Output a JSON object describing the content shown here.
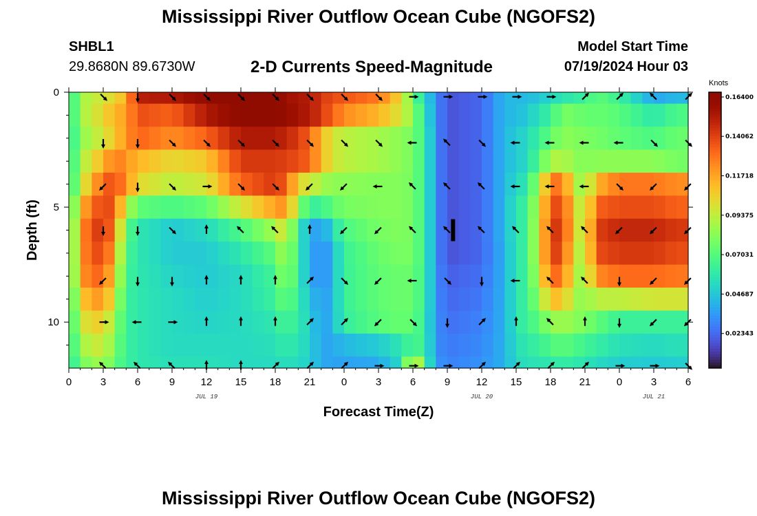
{
  "page": {
    "title": "Mississippi River Outflow Ocean Cube (NGOFS2)",
    "title_repeat": "Mississippi River Outflow Ocean Cube (NGOFS2)"
  },
  "station": {
    "id": "SHBL1",
    "coords": "29.8680N  89.6730W"
  },
  "model": {
    "start_label": "Model Start Time",
    "start_value": "07/19/2024 Hour 03"
  },
  "chart_data": {
    "type": "heatmap",
    "title": "2-D Currents Speed-Magnitude",
    "xlabel": "Forecast Time(Z)",
    "ylabel": "Depth (ft)",
    "x_tick_labels": [
      "0",
      "3",
      "6",
      "9",
      "12",
      "15",
      "18",
      "21",
      "0",
      "3",
      "6",
      "9",
      "12",
      "15",
      "18",
      "21",
      "0",
      "3",
      "6"
    ],
    "x_tick_hours": [
      0,
      3,
      6,
      9,
      12,
      15,
      18,
      21,
      24,
      27,
      30,
      33,
      36,
      39,
      42,
      45,
      48,
      51,
      54
    ],
    "date_labels": [
      {
        "text": "JUL 19",
        "hour": 12
      },
      {
        "text": "JUL 20",
        "hour": 36
      },
      {
        "text": "JUL 21",
        "hour": 51
      }
    ],
    "xlim_hours": [
      0,
      54
    ],
    "ylim_ft": [
      0,
      12
    ],
    "y_tick_labels": [
      "0",
      "5",
      "10"
    ],
    "y_tick_values": [
      0,
      5,
      10
    ],
    "colorbar": {
      "unit": "Knots",
      "min": 0.0,
      "max": 0.164,
      "tick_labels": [
        "0.16400",
        "0.14062",
        "0.11718",
        "0.09375",
        "0.07031",
        "0.04687",
        "0.02343"
      ],
      "tick_values": [
        0.164,
        0.14062,
        0.11718,
        0.09375,
        0.07031,
        0.04687,
        0.02343
      ]
    },
    "depth_layers_ft": [
      0,
      1,
      2,
      3,
      4,
      5,
      6,
      7,
      8,
      9,
      10,
      11,
      12
    ],
    "speed_anchor_hours": [
      0,
      1,
      3,
      4,
      5,
      6,
      9,
      12,
      15,
      18,
      19,
      20,
      21,
      22,
      23,
      24,
      27,
      29,
      30,
      31,
      32,
      33,
      36,
      38,
      39,
      40,
      42,
      43,
      44,
      45,
      46,
      48,
      51,
      53,
      54
    ],
    "speed_knots": [
      [
        0.05,
        0.085,
        0.095,
        0.1,
        0.11,
        0.148,
        0.15,
        0.16,
        0.163,
        0.162,
        0.155,
        0.15,
        0.15,
        0.14,
        0.135,
        0.133,
        0.125,
        0.1,
        0.07,
        0.05,
        0.03,
        0.015,
        0.02,
        0.04,
        0.04,
        0.04,
        0.048,
        0.055,
        0.055,
        0.06,
        0.07,
        0.06,
        0.035,
        0.04,
        0.04
      ],
      [
        0.05,
        0.085,
        0.1,
        0.11,
        0.115,
        0.135,
        0.13,
        0.15,
        0.162,
        0.162,
        0.158,
        0.152,
        0.15,
        0.14,
        0.13,
        0.12,
        0.11,
        0.095,
        0.08,
        0.055,
        0.03,
        0.015,
        0.02,
        0.04,
        0.04,
        0.045,
        0.06,
        0.075,
        0.075,
        0.07,
        0.072,
        0.068,
        0.055,
        0.065,
        0.065
      ],
      [
        0.05,
        0.08,
        0.095,
        0.105,
        0.118,
        0.13,
        0.12,
        0.13,
        0.15,
        0.15,
        0.145,
        0.14,
        0.13,
        0.11,
        0.095,
        0.09,
        0.085,
        0.08,
        0.075,
        0.06,
        0.03,
        0.015,
        0.02,
        0.04,
        0.045,
        0.05,
        0.07,
        0.08,
        0.078,
        0.076,
        0.075,
        0.07,
        0.065,
        0.072,
        0.072
      ],
      [
        0.05,
        0.085,
        0.11,
        0.125,
        0.118,
        0.11,
        0.1,
        0.105,
        0.14,
        0.14,
        0.138,
        0.135,
        0.13,
        0.11,
        0.095,
        0.09,
        0.085,
        0.08,
        0.075,
        0.06,
        0.03,
        0.015,
        0.02,
        0.04,
        0.045,
        0.05,
        0.085,
        0.09,
        0.08,
        0.078,
        0.08,
        0.08,
        0.08,
        0.075,
        0.075
      ],
      [
        0.05,
        0.09,
        0.13,
        0.135,
        0.12,
        0.1,
        0.09,
        0.095,
        0.13,
        0.14,
        0.13,
        0.1,
        0.095,
        0.085,
        0.08,
        0.08,
        0.078,
        0.078,
        0.075,
        0.06,
        0.03,
        0.015,
        0.02,
        0.04,
        0.05,
        0.055,
        0.12,
        0.13,
        0.09,
        0.08,
        0.11,
        0.125,
        0.125,
        0.12,
        0.12
      ],
      [
        0.05,
        0.11,
        0.14,
        0.13,
        0.09,
        0.07,
        0.065,
        0.07,
        0.095,
        0.115,
        0.12,
        0.08,
        0.06,
        0.06,
        0.07,
        0.075,
        0.078,
        0.078,
        0.075,
        0.06,
        0.03,
        0.015,
        0.02,
        0.04,
        0.055,
        0.06,
        0.13,
        0.14,
        0.1,
        0.085,
        0.13,
        0.135,
        0.135,
        0.13,
        0.13
      ],
      [
        0.05,
        0.12,
        0.145,
        0.12,
        0.07,
        0.055,
        0.045,
        0.05,
        0.065,
        0.085,
        0.1,
        0.055,
        0.04,
        0.03,
        0.05,
        0.065,
        0.075,
        0.078,
        0.075,
        0.06,
        0.03,
        0.015,
        0.02,
        0.04,
        0.055,
        0.06,
        0.135,
        0.145,
        0.1,
        0.088,
        0.138,
        0.145,
        0.145,
        0.14,
        0.14
      ],
      [
        0.05,
        0.12,
        0.14,
        0.11,
        0.065,
        0.055,
        0.045,
        0.045,
        0.055,
        0.07,
        0.09,
        0.055,
        0.04,
        0.025,
        0.04,
        0.06,
        0.072,
        0.076,
        0.075,
        0.06,
        0.03,
        0.015,
        0.02,
        0.038,
        0.055,
        0.06,
        0.135,
        0.14,
        0.095,
        0.085,
        0.135,
        0.14,
        0.14,
        0.135,
        0.135
      ],
      [
        0.05,
        0.118,
        0.132,
        0.1,
        0.062,
        0.055,
        0.048,
        0.045,
        0.05,
        0.062,
        0.085,
        0.055,
        0.04,
        0.025,
        0.04,
        0.06,
        0.07,
        0.073,
        0.072,
        0.06,
        0.03,
        0.018,
        0.022,
        0.038,
        0.055,
        0.06,
        0.125,
        0.13,
        0.09,
        0.082,
        0.12,
        0.128,
        0.128,
        0.125,
        0.125
      ],
      [
        0.05,
        0.105,
        0.12,
        0.09,
        0.06,
        0.055,
        0.05,
        0.046,
        0.05,
        0.06,
        0.075,
        0.055,
        0.045,
        0.03,
        0.04,
        0.06,
        0.07,
        0.073,
        0.072,
        0.06,
        0.03,
        0.02,
        0.024,
        0.038,
        0.055,
        0.06,
        0.105,
        0.11,
        0.085,
        0.08,
        0.09,
        0.09,
        0.095,
        0.095,
        0.095
      ],
      [
        0.05,
        0.095,
        0.105,
        0.08,
        0.06,
        0.055,
        0.05,
        0.048,
        0.05,
        0.055,
        0.065,
        0.055,
        0.048,
        0.032,
        0.04,
        0.058,
        0.068,
        0.072,
        0.07,
        0.058,
        0.03,
        0.022,
        0.026,
        0.038,
        0.055,
        0.06,
        0.08,
        0.085,
        0.08,
        0.076,
        0.07,
        0.06,
        0.06,
        0.06,
        0.06
      ],
      [
        0.05,
        0.085,
        0.095,
        0.075,
        0.06,
        0.055,
        0.05,
        0.05,
        0.05,
        0.052,
        0.058,
        0.052,
        0.048,
        0.034,
        0.036,
        0.04,
        0.045,
        0.055,
        0.065,
        0.06,
        0.03,
        0.024,
        0.028,
        0.038,
        0.052,
        0.055,
        0.065,
        0.07,
        0.065,
        0.062,
        0.058,
        0.052,
        0.05,
        0.052,
        0.052
      ],
      [
        0.05,
        0.075,
        0.085,
        0.07,
        0.06,
        0.055,
        0.052,
        0.052,
        0.05,
        0.05,
        0.052,
        0.05,
        0.046,
        0.036,
        0.034,
        0.034,
        0.036,
        0.05,
        0.105,
        0.065,
        0.032,
        0.026,
        0.03,
        0.038,
        0.05,
        0.052,
        0.055,
        0.058,
        0.056,
        0.054,
        0.05,
        0.046,
        0.045,
        0.046,
        0.046
      ]
    ],
    "arrow_hours": [
      3,
      6,
      9,
      12,
      15,
      18,
      21,
      24,
      27,
      30,
      33,
      36,
      39,
      42,
      45,
      48,
      51,
      54
    ],
    "arrow_depths_ft": [
      0.2,
      2.2,
      4.1,
      6.0,
      8.2,
      10.0,
      11.9
    ],
    "arrow_dir_deg": [
      [
        135,
        180,
        135,
        135,
        135,
        135,
        135,
        135,
        135,
        90,
        90,
        90,
        90,
        90,
        45,
        45,
        315,
        45
      ],
      [
        180,
        180,
        135,
        135,
        135,
        135,
        135,
        135,
        135,
        270,
        315,
        135,
        270,
        270,
        270,
        270,
        135,
        135
      ],
      [
        225,
        180,
        135,
        90,
        135,
        135,
        225,
        225,
        270,
        315,
        315,
        315,
        270,
        270,
        270,
        135,
        225,
        225
      ],
      [
        180,
        180,
        135,
        0,
        315,
        315,
        0,
        225,
        225,
        315,
        315,
        315,
        315,
        315,
        315,
        225,
        225,
        225
      ],
      [
        225,
        180,
        180,
        0,
        0,
        0,
        45,
        135,
        225,
        270,
        135,
        180,
        270,
        315,
        315,
        180,
        225,
        225
      ],
      [
        90,
        270,
        90,
        0,
        0,
        0,
        45,
        45,
        225,
        135,
        180,
        45,
        0,
        315,
        0,
        180,
        225,
        225
      ],
      [
        315,
        315,
        315,
        0,
        0,
        45,
        45,
        45,
        90,
        90,
        90,
        45,
        45,
        45,
        45,
        90,
        90,
        135
      ]
    ],
    "marker": {
      "label": "data gap marker",
      "hour": 33.5,
      "depth_ft": 6.0
    }
  }
}
